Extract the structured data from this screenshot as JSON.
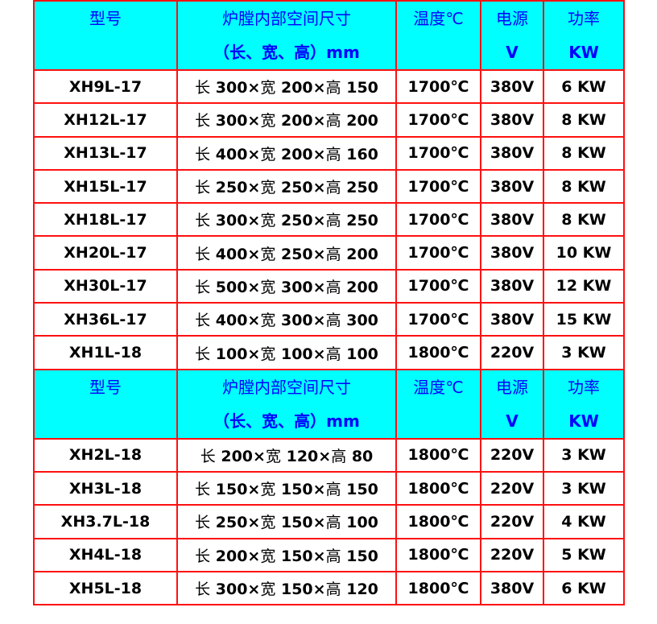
{
  "header": {
    "model": "型号",
    "size_line1": "炉膛内部空间尺寸",
    "size_line2": "（长、宽、高）mm",
    "temp": "温度℃",
    "power_line1": "电源",
    "power_line2": "V",
    "watt_line1": "功率",
    "watt_line2": "KW"
  },
  "colors": {
    "border": "#ff1010",
    "header_bg": "#00ffff",
    "header_text": "#0000ff"
  },
  "group1": [
    {
      "model": "XH9L-17",
      "l": "300",
      "w": "200",
      "h": "150",
      "temp": "1700℃",
      "volt": "380V",
      "kw": "6 KW"
    },
    {
      "model": "XH12L-17",
      "l": "300",
      "w": "200",
      "h": "200",
      "temp": "1700℃",
      "volt": "380V",
      "kw": "8 KW"
    },
    {
      "model": "XH13L-17",
      "l": "400",
      "w": "200",
      "h": "160",
      "temp": "1700℃",
      "volt": "380V",
      "kw": "8 KW"
    },
    {
      "model": "XH15L-17",
      "l": "250",
      "w": "250",
      "h": "250",
      "temp": "1700℃",
      "volt": "380V",
      "kw": "8 KW"
    },
    {
      "model": "XH18L-17",
      "l": "300",
      "w": "250",
      "h": "250",
      "temp": "1700℃",
      "volt": "380V",
      "kw": "8 KW"
    },
    {
      "model": "XH20L-17",
      "l": "400",
      "w": "250",
      "h": "200",
      "temp": "1700℃",
      "volt": "380V",
      "kw": "10 KW"
    },
    {
      "model": "XH30L-17",
      "l": "500",
      "w": "300",
      "h": "200",
      "temp": "1700℃",
      "volt": "380V",
      "kw": "12 KW"
    },
    {
      "model": "XH36L-17",
      "l": "400",
      "w": "300",
      "h": "300",
      "temp": "1700℃",
      "volt": "380V",
      "kw": "15 KW"
    },
    {
      "model": "XH1L-18",
      "l": "100",
      "w": "100",
      "h": "100",
      "temp": "1800℃",
      "volt": "220V",
      "kw": "3 KW"
    }
  ],
  "group2": [
    {
      "model": "XH2L-18",
      "l": "200",
      "w": "120",
      "h": "80",
      "temp": "1800℃",
      "volt": "220V",
      "kw": "3 KW"
    },
    {
      "model": "XH3L-18",
      "l": "150",
      "w": "150",
      "h": "150",
      "temp": "1800℃",
      "volt": "220V",
      "kw": "3 KW"
    },
    {
      "model": "XH3.7L-18",
      "l": "250",
      "w": "150",
      "h": "100",
      "temp": "1800℃",
      "volt": "220V",
      "kw": "4 KW"
    },
    {
      "model": "XH4L-18",
      "l": "200",
      "w": "150",
      "h": "150",
      "temp": "1800℃",
      "volt": "220V",
      "kw": "5 KW"
    },
    {
      "model": "XH5L-18",
      "l": "300",
      "w": "150",
      "h": "120",
      "temp": "1800℃",
      "volt": "380V",
      "kw": "6 KW"
    }
  ],
  "labels": {
    "len": "长",
    "wid": "宽",
    "hei": "高",
    "times": "×"
  }
}
